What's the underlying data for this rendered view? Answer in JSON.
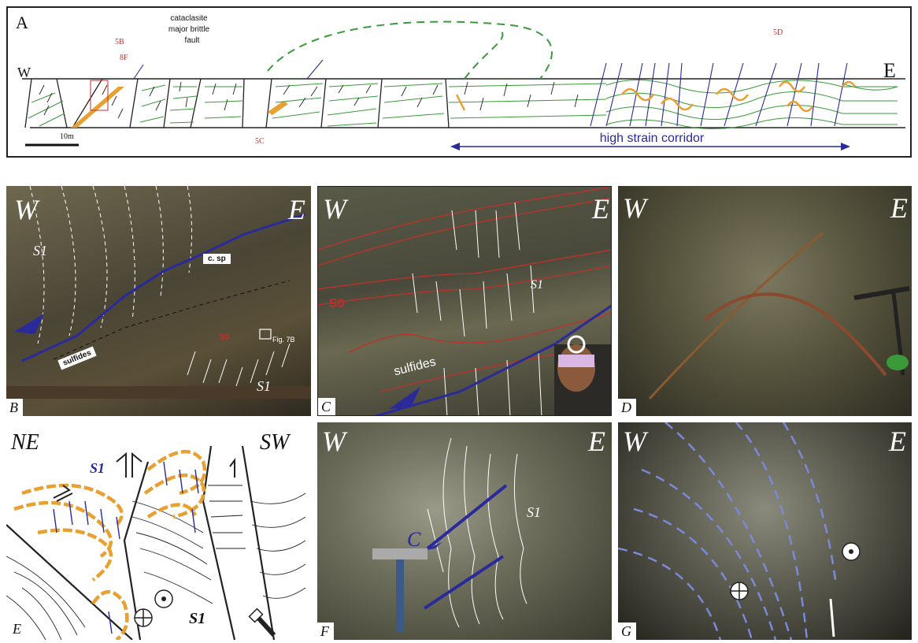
{
  "panel_a": {
    "label": "A",
    "west": "W",
    "east": "E",
    "refs": {
      "b": "5B",
      "f": "8F",
      "c": "5C",
      "d": "5D"
    },
    "fault_label": [
      "cataclasite",
      "major brittle",
      "fault"
    ],
    "scale": "10m",
    "corridor": "high strain corridor"
  },
  "panel_b": {
    "label": "B",
    "west": "W",
    "east": "E",
    "s1a": "S1",
    "s1b": "S1",
    "s0": "S0",
    "csp": "c. sp",
    "sulfides": "sulfides",
    "fig": "Fig. 7B"
  },
  "panel_c": {
    "label": "C",
    "west": "W",
    "east": "E",
    "s0": "S0",
    "s1": "S1",
    "sulfides": "sulfides"
  },
  "panel_d": {
    "label": "D",
    "west": "W",
    "east": "E"
  },
  "panel_e": {
    "label": "E",
    "ne": "NE",
    "sw": "SW",
    "s1a": "S1",
    "s1b": "S1"
  },
  "panel_f": {
    "label": "F",
    "west": "W",
    "east": "E",
    "c": "C",
    "s1": "S1"
  },
  "panel_g": {
    "label": "G",
    "west": "W",
    "east": "E"
  },
  "colors": {
    "blue": "#2a2a9a",
    "orange": "#e8a030",
    "green": "#3a9a3a",
    "red": "#c0302a",
    "frame": "#1a1a1a"
  }
}
